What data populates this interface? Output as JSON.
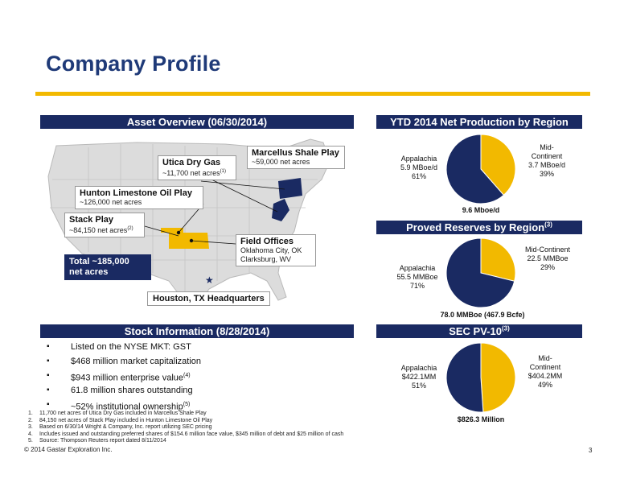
{
  "title": "Company Profile",
  "colors": {
    "navy": "#1a2a62",
    "gold": "#f2b900",
    "title_blue": "#1f3a78"
  },
  "asset_overview": {
    "header": "Asset Overview (06/30/2014)",
    "utica": {
      "title": "Utica Dry Gas",
      "sub": "~11,700 net acres",
      "ref": "(1)"
    },
    "marcellus": {
      "title": "Marcellus Shale Play",
      "sub": "~59,000 net acres"
    },
    "hunton": {
      "title": "Hunton Limestone Oil Play",
      "sub": "~126,000 net acres"
    },
    "stack": {
      "title": "Stack Play",
      "sub": "~84,150 net acres",
      "ref": "(2)"
    },
    "field": {
      "title": "Field Offices",
      "line1": "Oklahoma City, OK",
      "line2": "Clarksburg, WV"
    },
    "total_line1": "Total ~185,000",
    "total_line2": "net acres",
    "hq": "Houston, TX Headquarters"
  },
  "stock": {
    "header": "Stock Information (8/28/2014)",
    "items": [
      {
        "text": "Listed on the NYSE MKT: GST",
        "ref": ""
      },
      {
        "text": "$468 million market capitalization",
        "ref": ""
      },
      {
        "text": "$943 million enterprise value",
        "ref": "(4)"
      },
      {
        "text": "61.8 million shares outstanding",
        "ref": ""
      },
      {
        "text": "~52% institutional ownership",
        "ref": "(5)"
      }
    ]
  },
  "footnotes": [
    {
      "num": "1.",
      "text": "11,700 net acres of Utica Dry Gas included in Marcellus Shale Play"
    },
    {
      "num": "2.",
      "text": "84,150 net acres of Stack Play included in Hunton Limestone Oil Play"
    },
    {
      "num": "3.",
      "text": "Based on 6/30/14 Wright & Company, Inc. report utilizing SEC pricing"
    },
    {
      "num": "4.",
      "text": "Includes issued and outstanding preferred shares of $154.6 million face value, $345 million of debt and $25 million of cash"
    },
    {
      "num": "5.",
      "text": "Source: Thompson Reuters report dated 8/11/2014"
    }
  ],
  "copyright": "© 2014 Gastar Exploration Inc.",
  "page_number": "3",
  "chart_data": [
    {
      "type": "pie",
      "title": "YTD 2014 Net Production by Region",
      "total_label": "9.6 Mboe/d",
      "slices": [
        {
          "name": "Appalachia",
          "value": 5.9,
          "unit": "MBoe/d",
          "pct": 61,
          "color": "#1a2a62",
          "label_lines": [
            "Appalachia",
            "5.9 MBoe/d",
            "61%"
          ]
        },
        {
          "name": "Mid-Continent",
          "value": 3.7,
          "unit": "MBoe/d",
          "pct": 39,
          "color": "#f2b900",
          "label_lines": [
            "Mid-",
            "Continent",
            "3.7 MBoe/d",
            "39%"
          ]
        }
      ]
    },
    {
      "type": "pie",
      "title": "Proved Reserves by Region",
      "title_ref": "(3)",
      "total_label": "78.0 MMBoe (467.9 Bcfe)",
      "slices": [
        {
          "name": "Appalachia",
          "value": 55.5,
          "unit": "MMBoe",
          "pct": 71,
          "color": "#1a2a62",
          "label_lines": [
            "Appalachia",
            "55.5 MMBoe",
            "71%"
          ]
        },
        {
          "name": "Mid-Continent",
          "value": 22.5,
          "unit": "MMBoe",
          "pct": 29,
          "color": "#f2b900",
          "label_lines": [
            "Mid-Continent",
            "22.5 MMBoe",
            "29%"
          ]
        }
      ]
    },
    {
      "type": "pie",
      "title": "SEC PV-10",
      "title_ref": "(3)",
      "total_label": "$826.3 Million",
      "slices": [
        {
          "name": "Appalachia",
          "value": 422.1,
          "unit": "$MM",
          "pct": 51,
          "color": "#1a2a62",
          "label_lines": [
            "Appalachia",
            "$422.1MM",
            "51%"
          ]
        },
        {
          "name": "Mid-Continent",
          "value": 404.2,
          "unit": "$MM",
          "pct": 49,
          "color": "#f2b900",
          "label_lines": [
            "Mid-",
            "Continent",
            "$404.2MM",
            "49%"
          ]
        }
      ]
    }
  ]
}
